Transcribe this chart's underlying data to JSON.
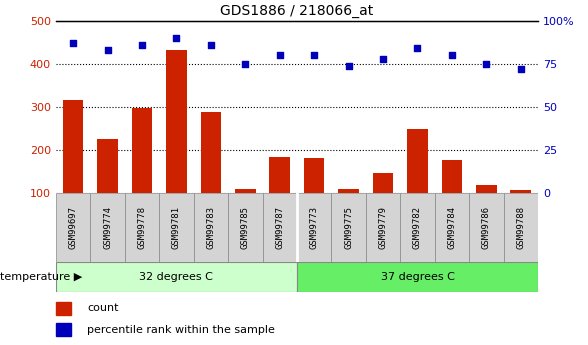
{
  "title": "GDS1886 / 218066_at",
  "categories": [
    "GSM99697",
    "GSM99774",
    "GSM99778",
    "GSM99781",
    "GSM99783",
    "GSM99785",
    "GSM99787",
    "GSM99773",
    "GSM99775",
    "GSM99779",
    "GSM99782",
    "GSM99784",
    "GSM99786",
    "GSM99788"
  ],
  "counts": [
    315,
    225,
    298,
    432,
    288,
    110,
    185,
    182,
    110,
    148,
    250,
    177,
    118,
    107
  ],
  "percentile_vals": [
    87,
    83,
    86,
    90,
    86,
    75,
    80,
    80,
    74,
    78,
    84,
    80,
    75,
    72
  ],
  "group1_label": "32 degrees C",
  "group2_label": "37 degrees C",
  "group1_count": 7,
  "group2_count": 7,
  "bar_color": "#cc2200",
  "dot_color": "#0000bb",
  "group1_color": "#ccffcc",
  "group2_color": "#66ee66",
  "ylim_left": [
    100,
    500
  ],
  "yticks_left": [
    100,
    200,
    300,
    400,
    500
  ],
  "yticks_right_labels": [
    "0",
    "25",
    "50",
    "75",
    "100%"
  ],
  "legend_count": "count",
  "legend_pct": "percentile rank within the sample",
  "temp_label": "temperature"
}
